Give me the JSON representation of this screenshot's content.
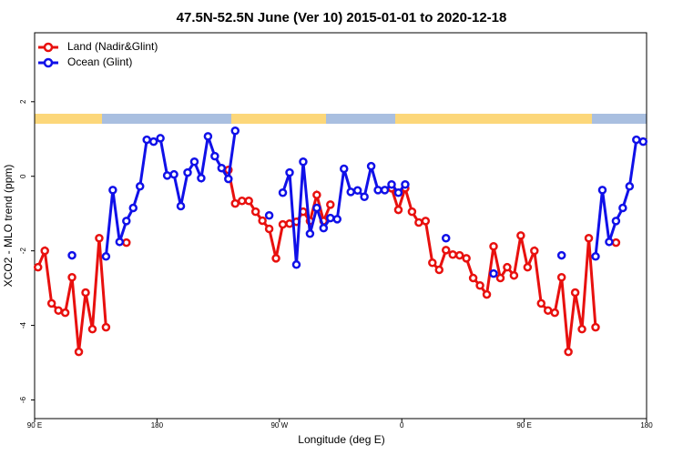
{
  "chart_data": {
    "type": "line",
    "title": "47.5N-52.5N June (Ver 10)   2015-01-01 to 2020-12-18",
    "xlabel": "Longitude (deg E)",
    "ylabel": "XCO2 - MLO trend (ppm)",
    "xlim": [
      90,
      540
    ],
    "ylim": [
      -6.5,
      3.85
    ],
    "xticks": [
      {
        "value": 90,
        "label": "90 E"
      },
      180,
      {
        "value": 270,
        "label": "90 W"
      },
      {
        "value": 360,
        "label": "0"
      },
      {
        "value": 450,
        "label": "90 E"
      },
      {
        "value": 540,
        "label": "180"
      }
    ],
    "yticks": [
      -6,
      -4,
      -2,
      0,
      2
    ],
    "legend": "top-left",
    "x": [
      92.5,
      97.5,
      102.5,
      107.5,
      112.5,
      117.5,
      122.5,
      127.5,
      132.5,
      137.5,
      142.5,
      147.5,
      152.5,
      157.5,
      162.5,
      167.5,
      172.5,
      177.5,
      182.5,
      187.5,
      192.5,
      197.5,
      202.5,
      207.5,
      212.5,
      217.5,
      222.5,
      227.5,
      232.5,
      237.5,
      242.5,
      247.5,
      252.5,
      257.5,
      262.5,
      267.5,
      272.5,
      277.5,
      282.5,
      287.5,
      292.5,
      297.5,
      302.5,
      307.5,
      312.5,
      317.5,
      322.5,
      327.5,
      332.5,
      337.5,
      342.5,
      347.5,
      352.5,
      357.5,
      362.5,
      367.5,
      372.5,
      377.5,
      382.5,
      387.5,
      392.5,
      397.5,
      402.5,
      407.5,
      412.5,
      417.5,
      422.5,
      427.5,
      432.5,
      437.5,
      442.5,
      447.5,
      452.5,
      457.5,
      462.5,
      467.5,
      472.5,
      477.5,
      482.5,
      487.5,
      492.5,
      497.5,
      502.5,
      507.5,
      512.5,
      517.5,
      522.5,
      527.5,
      532.5,
      537.5
    ],
    "series": [
      {
        "name": "Land (Nadir&Glint)",
        "color": "#e8100e",
        "values": [
          -2.44,
          -2.0,
          -3.41,
          -3.6,
          -3.66,
          -2.71,
          -4.71,
          -3.12,
          -4.1,
          -1.66,
          -4.05,
          null,
          null,
          -1.78,
          null,
          null,
          null,
          null,
          null,
          null,
          null,
          null,
          null,
          null,
          null,
          null,
          null,
          null,
          0.17,
          -0.73,
          -0.66,
          -0.66,
          -0.95,
          -1.19,
          -1.41,
          -2.2,
          -1.29,
          -1.27,
          -1.22,
          -0.95,
          -1.2,
          -0.5,
          -1.2,
          -0.76,
          null,
          null,
          null,
          null,
          null,
          null,
          null,
          null,
          -0.32,
          -0.9,
          -0.32,
          -0.95,
          -1.24,
          -1.2,
          -2.32,
          -2.51,
          -1.98,
          -2.1,
          -2.12,
          -2.2,
          -2.73,
          -2.93,
          -3.17,
          -1.88,
          -2.73,
          -2.44,
          -2.66,
          -1.59,
          -2.44,
          -2.0,
          -3.41,
          -3.6,
          -3.66,
          -2.71,
          -4.71,
          -3.12,
          -4.1,
          -1.66,
          -4.05,
          null,
          null,
          -1.78,
          null,
          null,
          null,
          null
        ]
      },
      {
        "name": "Ocean (Glint)",
        "color": "#1010e8",
        "values": [
          null,
          null,
          null,
          null,
          null,
          -2.12,
          null,
          null,
          null,
          null,
          -2.15,
          -0.37,
          -1.76,
          -1.2,
          -0.85,
          -0.27,
          0.98,
          0.93,
          1.02,
          0.02,
          0.05,
          -0.8,
          0.1,
          0.39,
          -0.05,
          1.07,
          0.54,
          0.22,
          -0.07,
          1.22,
          null,
          null,
          null,
          null,
          -1.05,
          null,
          -0.44,
          0.1,
          -2.37,
          0.39,
          -1.54,
          -0.85,
          -1.39,
          -1.12,
          -1.15,
          0.2,
          -0.42,
          -0.38,
          -0.55,
          0.27,
          -0.37,
          -0.37,
          -0.22,
          -0.44,
          -0.22,
          null,
          null,
          null,
          null,
          null,
          -1.66,
          null,
          null,
          null,
          null,
          null,
          null,
          -2.61,
          null,
          null,
          null,
          null,
          null,
          null,
          null,
          null,
          null,
          -2.12,
          null,
          null,
          null,
          null,
          -2.15,
          -0.37,
          -1.76,
          -1.2,
          -0.85,
          -0.27,
          0.98,
          0.93
        ]
      }
    ]
  }
}
